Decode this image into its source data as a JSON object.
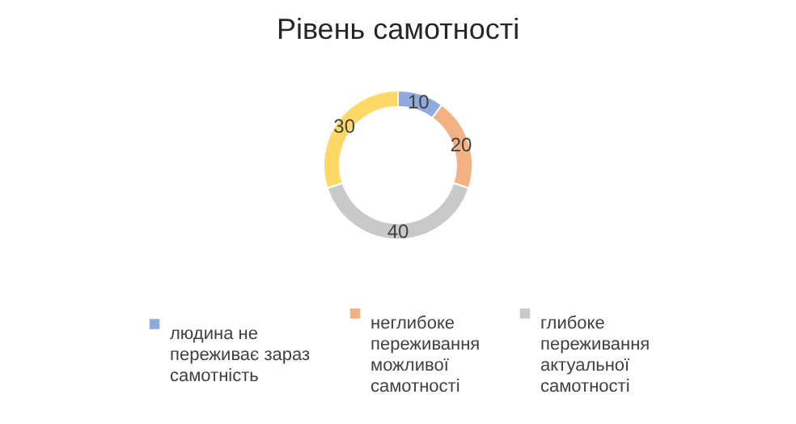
{
  "chart_data": {
    "type": "donut",
    "title": "Рівень самотності",
    "categories": [
      "людина не переживає зараз самотність",
      "неглибоке переживання можливої самотності",
      "глибоке переживання актуальної самотності",
      null
    ],
    "values": [
      10,
      20,
      40,
      30
    ],
    "colors": [
      "#8faadc",
      "#f4b183",
      "#c9c9c9",
      "#ffd966"
    ],
    "data_labels": true,
    "legend": "bottom"
  }
}
